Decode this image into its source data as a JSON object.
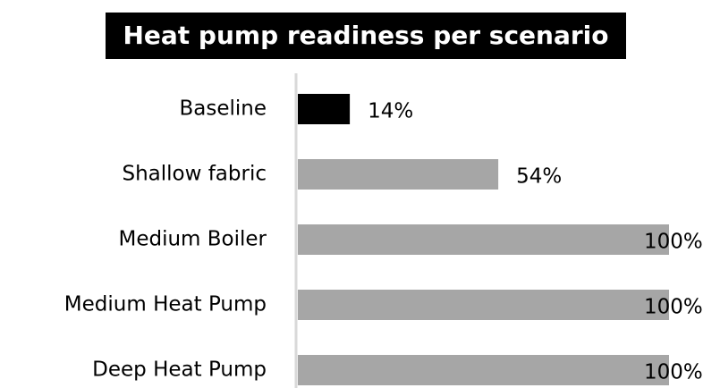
{
  "chart_data": {
    "type": "hbar",
    "title": "Heat pump readiness per scenario",
    "categories": [
      "Baseline",
      "Shallow fabric",
      "Medium Boiler",
      "Medium Heat Pump",
      "Deep Heat Pump"
    ],
    "values": [
      14,
      54,
      100,
      100,
      100
    ],
    "value_labels": [
      "14%",
      "54%",
      "100%",
      "100%",
      "100%"
    ],
    "colors": [
      "#000000",
      "#a6a6a6",
      "#a6a6a6",
      "#a6a6a6",
      "#a6a6a6"
    ],
    "xlim": [
      0,
      100
    ]
  }
}
